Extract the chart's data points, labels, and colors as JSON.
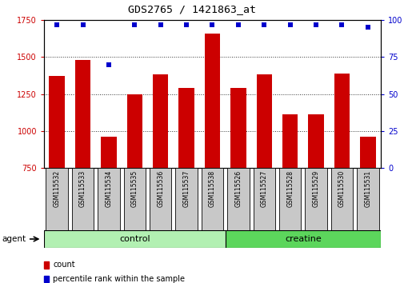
{
  "title": "GDS2765 / 1421863_at",
  "samples": [
    "GSM115532",
    "GSM115533",
    "GSM115534",
    "GSM115535",
    "GSM115536",
    "GSM115537",
    "GSM115538",
    "GSM115526",
    "GSM115527",
    "GSM115528",
    "GSM115529",
    "GSM115530",
    "GSM115531"
  ],
  "counts": [
    1370,
    1480,
    960,
    1250,
    1380,
    1290,
    1660,
    1290,
    1380,
    1110,
    1110,
    1390,
    960
  ],
  "percentiles": [
    97,
    97,
    70,
    97,
    97,
    97,
    97,
    97,
    97,
    97,
    97,
    97,
    95
  ],
  "bar_color": "#cc0000",
  "dot_color": "#0000cc",
  "ylim_left": [
    750,
    1750
  ],
  "ylim_right": [
    0,
    100
  ],
  "yticks_left": [
    750,
    1000,
    1250,
    1500,
    1750
  ],
  "yticks_right": [
    0,
    25,
    50,
    75,
    100
  ],
  "groups": [
    {
      "label": "control",
      "start": 0,
      "end": 7,
      "color": "#b2f0b2"
    },
    {
      "label": "creatine",
      "start": 7,
      "end": 13,
      "color": "#5cd65c"
    }
  ],
  "group_row_label": "agent",
  "legend_count_label": "count",
  "legend_percentile_label": "percentile rank within the sample",
  "bg_color": "#ffffff",
  "bar_box_color": "#c8c8c8",
  "tick_label_color_left": "#cc0000",
  "tick_label_color_right": "#0000cc"
}
